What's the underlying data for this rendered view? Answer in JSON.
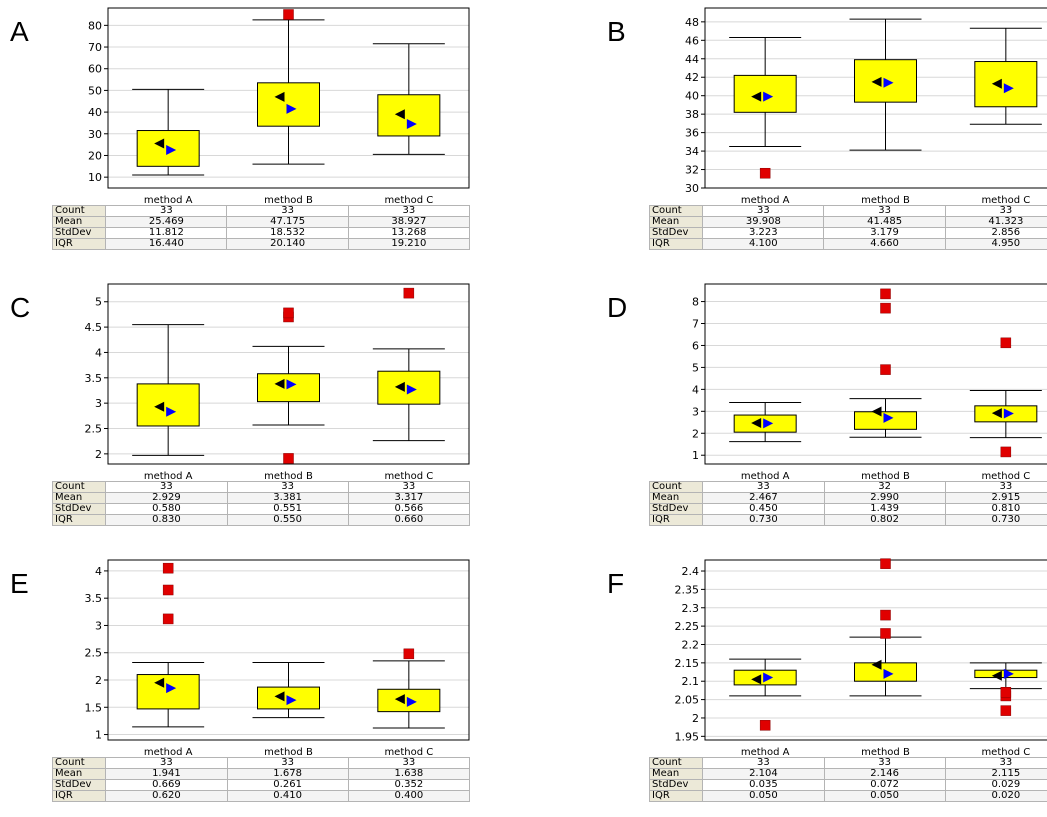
{
  "colors": {
    "box_fill": "#ffff00",
    "outlier": "#e00000",
    "mean_marker": "#000000",
    "median_marker": "#0000ff",
    "grid": "#d8d8d8",
    "table_header_bg": "#ece9d8"
  },
  "table_rows": [
    "Count",
    "Mean",
    "StdDev",
    "IQR"
  ],
  "chart_data": [
    {
      "panel": "A",
      "type": "box",
      "categories": [
        "method A",
        "method B",
        "method C"
      ],
      "yticks": [
        10,
        20,
        30,
        40,
        50,
        60,
        70,
        80
      ],
      "ylim": [
        5,
        88
      ],
      "boxes": [
        {
          "whisker_low": 11,
          "q1": 15,
          "q3": 31.5,
          "whisker_high": 50.5,
          "mean_marker": 25.5,
          "median_marker": 22.5,
          "outliers": []
        },
        {
          "whisker_low": 16,
          "q1": 33.5,
          "q3": 53.5,
          "whisker_high": 82.5,
          "mean_marker": 47,
          "median_marker": 41.5,
          "outliers": [
            85
          ]
        },
        {
          "whisker_low": 20.5,
          "q1": 29,
          "q3": 48,
          "whisker_high": 71.5,
          "mean_marker": 39,
          "median_marker": 34.5,
          "outliers": []
        }
      ],
      "stats": [
        [
          "33",
          "33",
          "33"
        ],
        [
          "25.469",
          "47.175",
          "38.927"
        ],
        [
          "11.812",
          "18.532",
          "13.268"
        ],
        [
          "16.440",
          "20.140",
          "19.210"
        ]
      ]
    },
    {
      "panel": "B",
      "type": "box",
      "categories": [
        "method A",
        "method B",
        "method C"
      ],
      "yticks": [
        30,
        32,
        34,
        36,
        38,
        40,
        42,
        44,
        46,
        48
      ],
      "ylim": [
        30,
        49.5
      ],
      "boxes": [
        {
          "whisker_low": 34.5,
          "q1": 38.2,
          "q3": 42.2,
          "whisker_high": 46.3,
          "mean_marker": 39.9,
          "median_marker": 39.9,
          "outliers": [
            31.6
          ]
        },
        {
          "whisker_low": 34.1,
          "q1": 39.3,
          "q3": 43.9,
          "whisker_high": 48.3,
          "mean_marker": 41.5,
          "median_marker": 41.4,
          "outliers": []
        },
        {
          "whisker_low": 36.9,
          "q1": 38.8,
          "q3": 43.7,
          "whisker_high": 47.3,
          "mean_marker": 41.3,
          "median_marker": 40.8,
          "outliers": []
        }
      ],
      "stats": [
        [
          "33",
          "33",
          "33"
        ],
        [
          "39.908",
          "41.485",
          "41.323"
        ],
        [
          "3.223",
          "3.179",
          "2.856"
        ],
        [
          "4.100",
          "4.660",
          "4.950"
        ]
      ]
    },
    {
      "panel": "C",
      "type": "box",
      "categories": [
        "method A",
        "method B",
        "method C"
      ],
      "yticks": [
        "2",
        "2.5",
        "3",
        "3.5",
        "4",
        "4.5",
        "5"
      ],
      "ylim": [
        1.8,
        5.35
      ],
      "boxes": [
        {
          "whisker_low": 1.97,
          "q1": 2.55,
          "q3": 3.38,
          "whisker_high": 4.55,
          "mean_marker": 2.93,
          "median_marker": 2.83,
          "outliers": []
        },
        {
          "whisker_low": 2.57,
          "q1": 3.03,
          "q3": 3.58,
          "whisker_high": 4.12,
          "mean_marker": 3.38,
          "median_marker": 3.37,
          "outliers": [
            1.91,
            4.7,
            4.78
          ]
        },
        {
          "whisker_low": 2.26,
          "q1": 2.98,
          "q3": 3.63,
          "whisker_high": 4.07,
          "mean_marker": 3.32,
          "median_marker": 3.27,
          "outliers": [
            5.17
          ]
        }
      ],
      "stats": [
        [
          "33",
          "33",
          "33"
        ],
        [
          "2.929",
          "3.381",
          "3.317"
        ],
        [
          "0.580",
          "0.551",
          "0.566"
        ],
        [
          "0.830",
          "0.550",
          "0.660"
        ]
      ]
    },
    {
      "panel": "D",
      "type": "box",
      "categories": [
        "method A",
        "method B",
        "method C"
      ],
      "yticks": [
        1,
        2,
        3,
        4,
        5,
        6,
        7,
        8
      ],
      "ylim": [
        0.6,
        8.8
      ],
      "boxes": [
        {
          "whisker_low": 1.62,
          "q1": 2.05,
          "q3": 2.83,
          "whisker_high": 3.4,
          "mean_marker": 2.47,
          "median_marker": 2.45,
          "outliers": []
        },
        {
          "whisker_low": 1.82,
          "q1": 2.18,
          "q3": 2.98,
          "whisker_high": 3.58,
          "mean_marker": 2.99,
          "median_marker": 2.7,
          "outliers": [
            4.9,
            7.7,
            8.35
          ]
        },
        {
          "whisker_low": 1.8,
          "q1": 2.52,
          "q3": 3.25,
          "whisker_high": 3.95,
          "mean_marker": 2.92,
          "median_marker": 2.9,
          "outliers": [
            1.15,
            6.12
          ]
        }
      ],
      "stats": [
        [
          "33",
          "32",
          "33"
        ],
        [
          "2.467",
          "2.990",
          "2.915"
        ],
        [
          "0.450",
          "1.439",
          "0.810"
        ],
        [
          "0.730",
          "0.802",
          "0.730"
        ]
      ]
    },
    {
      "panel": "E",
      "type": "box",
      "categories": [
        "method A",
        "method B",
        "method C"
      ],
      "yticks": [
        "1",
        "1.5",
        "2",
        "2.5",
        "3",
        "3.5",
        "4"
      ],
      "ylim": [
        0.9,
        4.2
      ],
      "boxes": [
        {
          "whisker_low": 1.14,
          "q1": 1.47,
          "q3": 2.1,
          "whisker_high": 2.32,
          "mean_marker": 1.95,
          "median_marker": 1.85,
          "outliers": [
            3.12,
            3.65,
            4.05
          ]
        },
        {
          "whisker_low": 1.31,
          "q1": 1.47,
          "q3": 1.87,
          "whisker_high": 2.32,
          "mean_marker": 1.7,
          "median_marker": 1.63,
          "outliers": []
        },
        {
          "whisker_low": 1.12,
          "q1": 1.42,
          "q3": 1.83,
          "whisker_high": 2.35,
          "mean_marker": 1.65,
          "median_marker": 1.6,
          "outliers": [
            2.48
          ]
        }
      ],
      "stats": [
        [
          "33",
          "33",
          "33"
        ],
        [
          "1.941",
          "1.678",
          "1.638"
        ],
        [
          "0.669",
          "0.261",
          "0.352"
        ],
        [
          "0.620",
          "0.410",
          "0.400"
        ]
      ]
    },
    {
      "panel": "F",
      "type": "box",
      "categories": [
        "method A",
        "method B",
        "method C"
      ],
      "yticks": [
        "1.95",
        "2",
        "2.05",
        "2.1",
        "2.15",
        "2.2",
        "2.25",
        "2.3",
        "2.35",
        "2.4"
      ],
      "ylim": [
        1.94,
        2.43
      ],
      "boxes": [
        {
          "whisker_low": 2.06,
          "q1": 2.09,
          "q3": 2.13,
          "whisker_high": 2.16,
          "mean_marker": 2.105,
          "median_marker": 2.11,
          "outliers": [
            1.98
          ]
        },
        {
          "whisker_low": 2.06,
          "q1": 2.1,
          "q3": 2.15,
          "whisker_high": 2.22,
          "mean_marker": 2.145,
          "median_marker": 2.12,
          "outliers": [
            2.23,
            2.28,
            2.42
          ]
        },
        {
          "whisker_low": 2.08,
          "q1": 2.11,
          "q3": 2.13,
          "whisker_high": 2.15,
          "mean_marker": 2.115,
          "median_marker": 2.12,
          "outliers": [
            2.02,
            2.06,
            2.07
          ]
        }
      ],
      "stats": [
        [
          "33",
          "33",
          "33"
        ],
        [
          "2.104",
          "2.146",
          "2.115"
        ],
        [
          "0.035",
          "0.072",
          "0.029"
        ],
        [
          "0.050",
          "0.050",
          "0.020"
        ]
      ]
    }
  ]
}
